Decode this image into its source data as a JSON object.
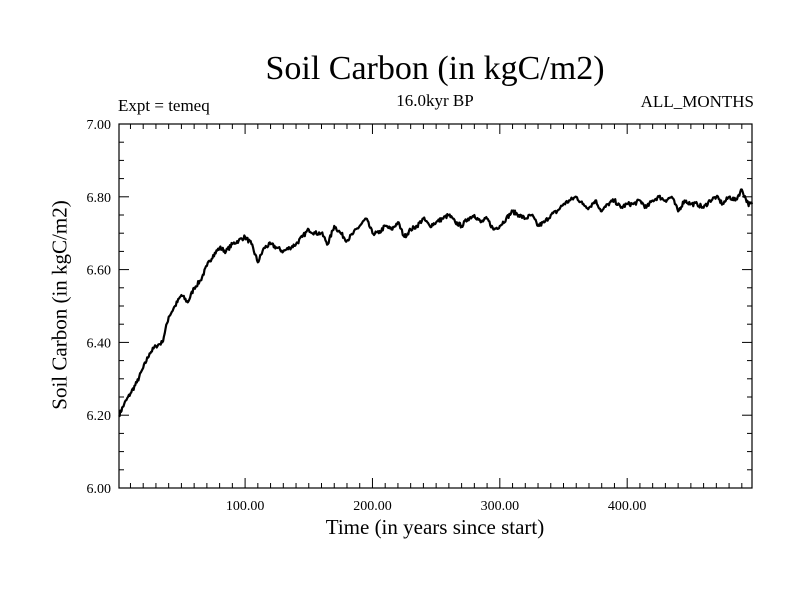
{
  "chart_data": {
    "type": "line",
    "title": "Soil Carbon (in kgC/m2)",
    "subtitle": "16.0kyr BP",
    "left_annotation": "Expt = temeq",
    "right_annotation": "ALL_MONTHS",
    "xlabel": "Time (in years since start)",
    "ylabel": "Soil Carbon (in kgC/m2)",
    "xlim": [
      1,
      498
    ],
    "ylim": [
      6.0,
      7.0
    ],
    "x_ticks": [
      100,
      200,
      300,
      400
    ],
    "x_tick_labels": [
      "100.00",
      "200.00",
      "300.00",
      "400.00"
    ],
    "y_ticks": [
      6.0,
      6.2,
      6.4,
      6.6,
      6.8,
      7.0
    ],
    "y_tick_labels": [
      "6.00",
      "6.20",
      "6.40",
      "6.60",
      "6.80",
      "7.00"
    ],
    "series": [
      {
        "name": "Soil Carbon",
        "color": "#000000",
        "x": [
          1,
          5,
          10,
          15,
          20,
          25,
          30,
          35,
          40,
          45,
          50,
          55,
          60,
          65,
          70,
          75,
          80,
          85,
          90,
          95,
          100,
          105,
          110,
          115,
          120,
          125,
          130,
          135,
          140,
          145,
          150,
          155,
          160,
          165,
          170,
          175,
          180,
          185,
          190,
          195,
          200,
          205,
          210,
          215,
          220,
          225,
          230,
          235,
          240,
          245,
          250,
          255,
          260,
          265,
          270,
          275,
          280,
          285,
          290,
          295,
          300,
          305,
          310,
          315,
          320,
          325,
          330,
          335,
          340,
          345,
          350,
          355,
          360,
          365,
          370,
          375,
          380,
          385,
          390,
          395,
          400,
          405,
          410,
          415,
          420,
          425,
          430,
          435,
          440,
          445,
          450,
          455,
          460,
          465,
          470,
          475,
          480,
          485,
          490,
          495,
          498
        ],
        "values": [
          6.2,
          6.23,
          6.26,
          6.29,
          6.33,
          6.37,
          6.39,
          6.4,
          6.47,
          6.5,
          6.53,
          6.51,
          6.55,
          6.57,
          6.61,
          6.64,
          6.66,
          6.65,
          6.67,
          6.68,
          6.69,
          6.67,
          6.62,
          6.66,
          6.67,
          6.66,
          6.65,
          6.66,
          6.67,
          6.69,
          6.71,
          6.7,
          6.7,
          6.67,
          6.72,
          6.7,
          6.68,
          6.7,
          6.72,
          6.74,
          6.7,
          6.7,
          6.72,
          6.71,
          6.73,
          6.69,
          6.71,
          6.72,
          6.74,
          6.72,
          6.73,
          6.74,
          6.75,
          6.73,
          6.72,
          6.74,
          6.75,
          6.73,
          6.74,
          6.71,
          6.72,
          6.74,
          6.76,
          6.75,
          6.74,
          6.75,
          6.72,
          6.73,
          6.75,
          6.76,
          6.78,
          6.79,
          6.8,
          6.78,
          6.77,
          6.79,
          6.76,
          6.78,
          6.79,
          6.77,
          6.78,
          6.78,
          6.79,
          6.77,
          6.79,
          6.8,
          6.79,
          6.8,
          6.76,
          6.79,
          6.78,
          6.78,
          6.77,
          6.79,
          6.8,
          6.78,
          6.8,
          6.79,
          6.82,
          6.78,
          6.78
        ]
      }
    ]
  }
}
